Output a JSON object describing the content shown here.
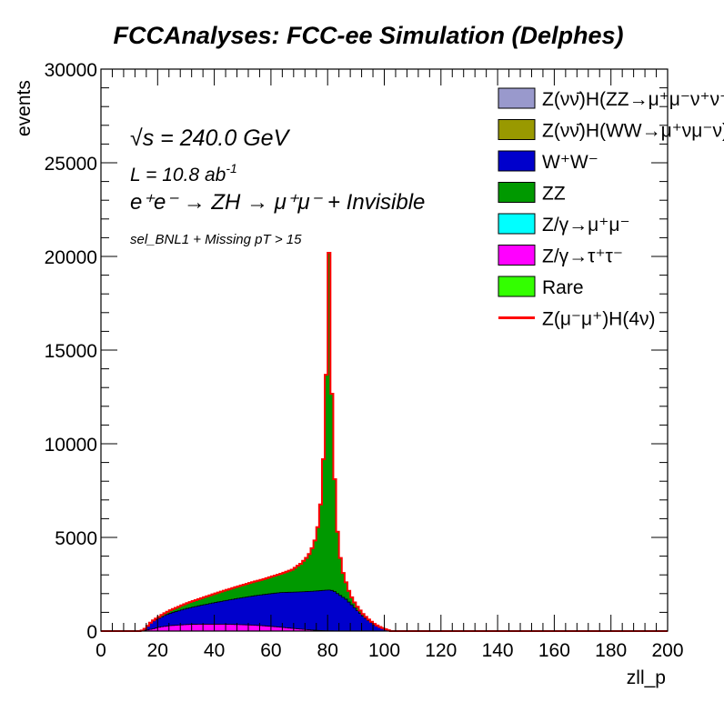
{
  "title": "FCCAnalyses: FCC-ee Simulation (Delphes)",
  "annotations": {
    "sqrt_s_symbol": "√s",
    "sqrt_s_value": " = 240.0 GeV",
    "lumi_label": "L = 10.8 ab",
    "lumi_exp": "-1",
    "process": "e⁺e⁻ → ZH → μ⁺μ⁻ + Invisible",
    "selection": "sel_BNL1 + Missing pT > 15"
  },
  "legend": [
    {
      "label": "Z(νν̄)H(ZZ→μ⁺μ⁻ν⁺ν⁻)",
      "color": "#9999cc",
      "style": "box"
    },
    {
      "label": "Z(νν̄)H(WW→μ⁺νμ⁻ν)",
      "color": "#999900",
      "style": "box"
    },
    {
      "label": "W⁺W⁻",
      "color": "#0000cc",
      "style": "box"
    },
    {
      "label": "ZZ",
      "color": "#009900",
      "style": "box"
    },
    {
      "label": "Z/γ→μ⁺μ⁻",
      "color": "#00ffff",
      "style": "box"
    },
    {
      "label": "Z/γ→τ⁺τ⁻",
      "color": "#ff00ff",
      "style": "box"
    },
    {
      "label": "Rare",
      "color": "#33ff00",
      "style": "box"
    },
    {
      "label": "Z(μ⁻μ⁺)H(4ν)",
      "color": "#ff0000",
      "style": "line"
    }
  ],
  "chart_data": {
    "type": "area",
    "title": "FCCAnalyses: FCC-ee Simulation (Delphes)",
    "xlabel": "zll_p",
    "ylabel": "events",
    "xlim": [
      0,
      200
    ],
    "ylim": [
      0,
      30000
    ],
    "x_ticks": [
      0,
      20,
      40,
      60,
      80,
      100,
      120,
      140,
      160,
      180,
      200
    ],
    "y_ticks": [
      0,
      5000,
      10000,
      15000,
      20000,
      25000,
      30000
    ],
    "x_tick_labels": [
      "0",
      "20",
      "40",
      "60",
      "80",
      "100",
      "120",
      "140",
      "160",
      "180",
      "200"
    ],
    "y_tick_labels": [
      "0",
      "5000",
      "10000",
      "15000",
      "20000",
      "25000",
      "30000"
    ],
    "grid": false,
    "legend_position": "top-right",
    "stacked": true,
    "bin_width": 1,
    "x": [
      10,
      11,
      12,
      13,
      14,
      15,
      16,
      17,
      18,
      19,
      20,
      21,
      22,
      23,
      24,
      25,
      26,
      27,
      28,
      29,
      30,
      31,
      32,
      33,
      34,
      35,
      36,
      37,
      38,
      39,
      40,
      41,
      42,
      43,
      44,
      45,
      46,
      47,
      48,
      49,
      50,
      51,
      52,
      53,
      54,
      55,
      56,
      57,
      58,
      59,
      60,
      61,
      62,
      63,
      64,
      65,
      66,
      67,
      68,
      69,
      70,
      71,
      72,
      73,
      74,
      75,
      76,
      77,
      78,
      79,
      80,
      81,
      82,
      83,
      84,
      85,
      86,
      87,
      88,
      89,
      90,
      91,
      92,
      93,
      94,
      95,
      96,
      97,
      98,
      99,
      100,
      101,
      102,
      103,
      104,
      105
    ],
    "series": [
      {
        "name": "Z/γ→τ⁺τ⁻",
        "color": "#ff00ff",
        "values": [
          0,
          0,
          0,
          0,
          10,
          30,
          60,
          90,
          120,
          160,
          200,
          230,
          250,
          270,
          290,
          300,
          310,
          320,
          330,
          340,
          350,
          355,
          360,
          362,
          364,
          366,
          367,
          368,
          368,
          368,
          367,
          366,
          365,
          363,
          360,
          357,
          354,
          350,
          346,
          341,
          336,
          330,
          324,
          317,
          309,
          300,
          291,
          281,
          270,
          258,
          246,
          233,
          220,
          206,
          192,
          177,
          162,
          147,
          132,
          117,
          103,
          90,
          78,
          66,
          55,
          45,
          36,
          28,
          22,
          16,
          12,
          9,
          6,
          4,
          3,
          2,
          1,
          1,
          0,
          0,
          0,
          0,
          0,
          0,
          0,
          0,
          0,
          0,
          0,
          0,
          0,
          0,
          0,
          0,
          0,
          0
        ]
      },
      {
        "name": "W⁺W⁻",
        "color": "#0000cc",
        "values": [
          0,
          0,
          0,
          0,
          20,
          80,
          200,
          330,
          410,
          450,
          480,
          530,
          580,
          620,
          660,
          700,
          730,
          760,
          800,
          830,
          860,
          890,
          920,
          950,
          980,
          1010,
          1040,
          1070,
          1100,
          1130,
          1160,
          1190,
          1220,
          1250,
          1280,
          1310,
          1340,
          1370,
          1400,
          1430,
          1460,
          1490,
          1520,
          1550,
          1580,
          1610,
          1640,
          1670,
          1700,
          1730,
          1760,
          1790,
          1820,
          1850,
          1870,
          1890,
          1910,
          1930,
          1950,
          1970,
          1990,
          2010,
          2030,
          2050,
          2070,
          2090,
          2110,
          2130,
          2150,
          2170,
          2180,
          2160,
          2100,
          2000,
          1900,
          1800,
          1700,
          1550,
          1400,
          1250,
          1100,
          950,
          800,
          680,
          560,
          450,
          350,
          270,
          200,
          140,
          90,
          40,
          0,
          0,
          0,
          0
        ]
      },
      {
        "name": "ZZ",
        "color": "#009900",
        "values": [
          0,
          0,
          0,
          0,
          0,
          10,
          20,
          30,
          40,
          60,
          80,
          100,
          120,
          140,
          160,
          180,
          200,
          220,
          240,
          260,
          280,
          300,
          320,
          340,
          360,
          380,
          400,
          420,
          440,
          460,
          480,
          500,
          520,
          540,
          560,
          580,
          600,
          620,
          640,
          660,
          680,
          700,
          720,
          740,
          760,
          780,
          800,
          820,
          850,
          880,
          910,
          940,
          970,
          1000,
          1050,
          1100,
          1150,
          1200,
          1300,
          1400,
          1500,
          1650,
          1800,
          2000,
          2300,
          2700,
          3400,
          4600,
          7000,
          11500,
          18000,
          10500,
          6000,
          3300,
          2000,
          1300,
          900,
          600,
          400,
          280,
          200,
          150,
          110,
          80,
          60,
          45,
          35,
          25,
          20,
          15,
          10,
          5,
          0,
          0,
          0,
          0
        ]
      },
      {
        "name": "Z(μ⁻μ⁺)H(4ν)",
        "color": "#ff0000",
        "style": "line",
        "values": [
          0,
          0,
          0,
          0,
          0,
          0,
          0,
          0,
          0,
          0,
          0,
          0,
          0,
          0,
          0,
          0,
          0,
          0,
          0,
          0,
          0,
          0,
          0,
          0,
          0,
          0,
          0,
          0,
          0,
          0,
          0,
          0,
          0,
          0,
          0,
          0,
          0,
          0,
          0,
          0,
          0,
          0,
          0,
          0,
          0,
          0,
          0,
          0,
          0,
          0,
          0,
          0,
          0,
          0,
          0,
          0,
          0,
          0,
          0,
          0,
          0,
          0,
          0,
          0,
          0,
          0,
          0,
          0,
          0,
          0,
          0,
          0,
          0,
          0,
          0,
          0,
          0,
          0,
          0,
          0,
          0,
          0,
          0,
          0,
          0,
          0,
          0,
          0,
          0,
          0,
          0,
          0,
          0,
          0,
          0,
          0
        ]
      }
    ]
  }
}
